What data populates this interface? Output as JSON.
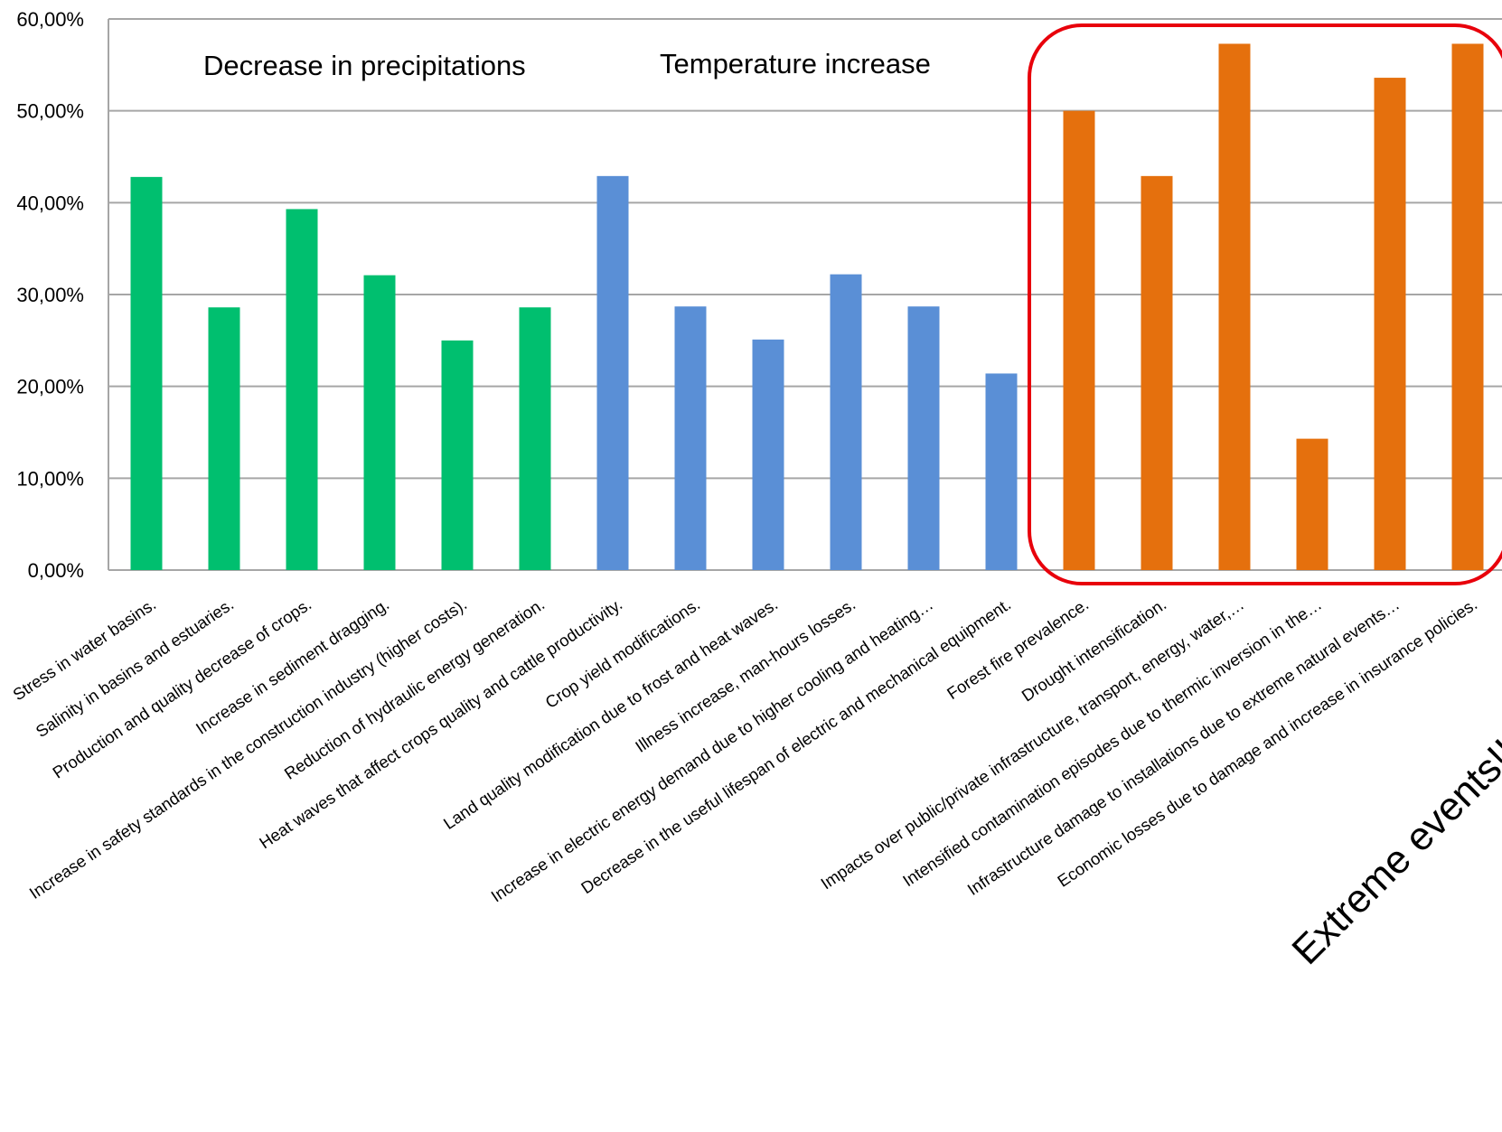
{
  "chart_data": {
    "type": "bar",
    "title": "",
    "xlabel": "",
    "ylabel": "",
    "ylim": [
      0,
      0.6
    ],
    "y_ticks": [
      "0,00%",
      "10,00%",
      "20,00%",
      "30,00%",
      "40,00%",
      "50,00%",
      "60,00%"
    ],
    "grid": true,
    "legend": "none",
    "group_labels": [
      "Decrease in precipitations",
      "Temperature increase"
    ],
    "annotation": "Extreme events!!",
    "colors": {
      "precipitation": "#00bf6f",
      "temperature": "#5a8fd6",
      "extreme": "#e5700d",
      "highlight": "#e8000b",
      "grid": "#a6a6a6"
    },
    "categories": [
      "Stress in water basins.",
      "Salinity in basins and estuaries.",
      "Production and quality decrease of crops.",
      "Increase in sediment dragging.",
      "Increase in safety standards in the construction industry (higher costs).",
      "Reduction of hydraulic energy generation.",
      "Heat waves that affect crops quality and cattle productivity.",
      "Crop yield modifications.",
      "Land quality modification due to frost and heat waves.",
      "Illness increase, man-hours losses.",
      "Increase in electric energy demand due to higher cooling and heating…",
      "Decrease in the useful lifespan of electric and mechanical equipment.",
      "Forest fire prevalence.",
      "Drought intensification.",
      "Impacts over public/private infrastructure, transport, energy, water,…",
      "Intensified contamination episodes due to thermic inversion in the…",
      "Infrastructure damage to installations due to extreme natural events…",
      "Economic losses due to damage and increase in insurance policies."
    ],
    "values": [
      0.428,
      0.286,
      0.393,
      0.321,
      0.25,
      0.286,
      0.429,
      0.287,
      0.251,
      0.322,
      0.287,
      0.214,
      0.5,
      0.429,
      0.573,
      0.143,
      0.536,
      0.573
    ],
    "bar_groups": [
      "precipitation",
      "precipitation",
      "precipitation",
      "precipitation",
      "precipitation",
      "precipitation",
      "temperature",
      "temperature",
      "temperature",
      "temperature",
      "temperature",
      "temperature",
      "extreme",
      "extreme",
      "extreme",
      "extreme",
      "extreme",
      "extreme"
    ]
  }
}
